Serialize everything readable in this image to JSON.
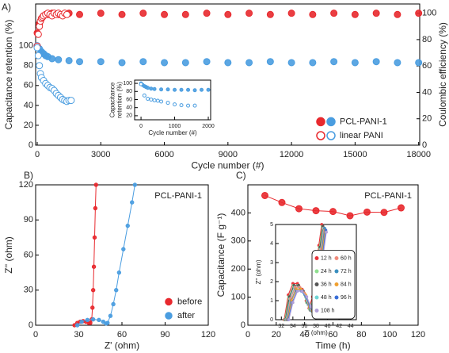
{
  "chart_data": [
    {
      "type": "scatter",
      "panel_label": "A)",
      "xlabel": "Cycle number (#)",
      "ylabel": "Capacitance retention (%)",
      "y2label": "Coulombic efficiency (%)",
      "ycolor": "#4a9de0",
      "y2color": "#e8292e",
      "xlim": [
        -75,
        18050
      ],
      "xticks": [
        0,
        3000,
        6000,
        9000,
        12000,
        15000,
        18000
      ],
      "ylim": [
        0,
        142
      ],
      "yticks": [
        0,
        20,
        40,
        60,
        80,
        100
      ],
      "y2lim": [
        0,
        107
      ],
      "y2ticks": [
        0,
        20,
        40,
        60,
        80,
        100
      ],
      "legend": "lower right",
      "series": [
        {
          "name": "PCL-PANI-1",
          "color": "#e8292e",
          "marker": "filled",
          "axis": "y2",
          "x": [
            0,
            100,
            200,
            300,
            400,
            500,
            700,
            1000,
            1500,
            2000,
            3000,
            4000,
            5000,
            6000,
            7000,
            8000,
            9000,
            10000,
            11000,
            12000,
            13000,
            14000,
            15000,
            16000,
            17000,
            18000
          ],
          "values": [
            85,
            92,
            96,
            98,
            99,
            99,
            100,
            99,
            100,
            99,
            100,
            99,
            100,
            99,
            99,
            100,
            99,
            100,
            99,
            100,
            99,
            100,
            99,
            100,
            99,
            100
          ]
        },
        {
          "name": "PCL-PANI-1",
          "color": "#4a9de0",
          "marker": "filled",
          "axis": "y",
          "x": [
            0,
            100,
            200,
            300,
            400,
            500,
            700,
            1000,
            1500,
            2000,
            3000,
            4000,
            5000,
            6000,
            7000,
            8000,
            9000,
            10000,
            11000,
            12000,
            13000,
            14000,
            15000,
            16000,
            17000,
            18000
          ],
          "values": [
            100,
            97,
            94,
            92,
            90,
            89,
            87,
            86,
            85,
            84,
            84,
            83,
            84,
            83,
            83,
            84,
            83,
            83,
            84,
            83,
            83,
            84,
            83,
            84,
            83,
            83
          ]
        },
        {
          "name": "linear PANI",
          "color": "#e8292e",
          "marker": "open",
          "axis": "y2",
          "x": [
            0,
            50,
            100,
            150,
            200,
            250,
            300,
            400,
            500,
            600,
            700,
            800,
            900,
            1000,
            1100,
            1200,
            1300,
            1400
          ],
          "values": [
            75,
            84,
            90,
            94,
            96,
            97,
            98,
            99,
            100,
            99,
            98,
            100,
            99,
            100,
            99,
            98,
            100,
            99
          ]
        },
        {
          "name": "linear PANI",
          "color": "#4a9de0",
          "marker": "open",
          "axis": "y",
          "x": [
            0,
            50,
            100,
            150,
            200,
            300,
            400,
            500,
            600,
            700,
            800,
            900,
            1000,
            1100,
            1200,
            1300,
            1400,
            1500,
            1600
          ],
          "values": [
            98,
            90,
            80,
            72,
            68,
            65,
            62,
            60,
            58,
            57,
            55,
            52,
            50,
            48,
            46,
            45,
            44,
            45,
            45
          ]
        }
      ]
    },
    {
      "type": "scatter",
      "xlabel": "Cycle number (#)",
      "ylabel": [
        "Capacitance",
        "retention (%)"
      ],
      "xlim": [
        -190,
        2070
      ],
      "xticks": [
        0,
        1000,
        2000
      ],
      "ylim": [
        10,
        108
      ],
      "yticks": [
        20,
        40,
        60,
        80,
        100
      ],
      "series": [
        {
          "color": "#4a9de0",
          "marker": "filled",
          "x": [
            0,
            50,
            100,
            150,
            200,
            300,
            400,
            600,
            800,
            1000,
            1200,
            1400,
            1600,
            1800,
            2000
          ],
          "values": [
            100,
            96,
            93,
            91,
            89,
            87,
            86,
            85,
            85,
            84,
            84,
            84,
            83,
            84,
            84
          ]
        },
        {
          "color": "#4a9de0",
          "marker": "open",
          "x": [
            0,
            100,
            200,
            300,
            400,
            500,
            600,
            800,
            1000,
            1200,
            1400,
            1600
          ],
          "values": [
            98,
            70,
            62,
            60,
            58,
            57,
            55,
            52,
            48,
            46,
            45,
            45
          ]
        }
      ]
    },
    {
      "type": "line",
      "panel_label": "B)",
      "annotation": "PCL-PANI-1",
      "xlabel": "Z' (ohm)",
      "ylabel": "Z'' (ohm)",
      "xlim": [
        0,
        120
      ],
      "xticks": [
        0,
        30,
        60,
        90,
        120
      ],
      "ylim": [
        0,
        120
      ],
      "yticks": [
        0,
        30,
        60,
        90,
        120
      ],
      "legend": "lower right",
      "series": [
        {
          "name": "before",
          "color": "#e8292e",
          "marker": "filled",
          "x": [
            27,
            29,
            31,
            33,
            35,
            37,
            38,
            39,
            39.5,
            40,
            40.5,
            41,
            41.5,
            42
          ],
          "values": [
            0,
            2,
            3,
            3.5,
            3,
            2,
            2,
            5,
            15,
            30,
            50,
            75,
            100,
            120
          ]
        },
        {
          "name": "after",
          "color": "#4a9de0",
          "marker": "filled",
          "x": [
            29,
            32,
            36,
            40,
            44,
            47,
            49,
            50,
            52,
            54,
            56,
            58,
            61,
            64,
            67,
            69
          ],
          "values": [
            0,
            3,
            4.5,
            5,
            4.5,
            3,
            1.5,
            2,
            8,
            18,
            30,
            45,
            65,
            85,
            105,
            120
          ]
        }
      ]
    },
    {
      "type": "line",
      "panel_label": "C)",
      "annotation": "PCL-PANI-1",
      "xlabel": "Time (h)",
      "ylabel": "Capacitance (F g⁻¹)",
      "xlim": [
        0,
        120
      ],
      "xticks": [
        0,
        20,
        40,
        60,
        80,
        100,
        120
      ],
      "ylim": [
        0,
        500
      ],
      "yticks": [
        0,
        100,
        200,
        300,
        400
      ],
      "series": [
        {
          "color": "#e8292e",
          "marker": "filled",
          "x": [
            12,
            24,
            36,
            48,
            60,
            72,
            84,
            96,
            108
          ],
          "values": [
            462,
            437,
            415,
            408,
            405,
            390,
            403,
            402,
            418
          ]
        }
      ]
    },
    {
      "type": "line",
      "xlabel": "Z' (ohm)",
      "ylabel": "Z'' (ohm)",
      "xlim": [
        31,
        45
      ],
      "xticks": [
        32,
        34,
        36,
        38,
        40,
        42,
        44
      ],
      "ylim": [
        0,
        5
      ],
      "yticks": [
        0,
        1,
        2,
        3,
        4,
        5
      ],
      "legend": "lower right",
      "series": [
        {
          "name": "12 h",
          "color": "#e8333a",
          "marker": "filled",
          "x": [
            32.5,
            33.2,
            34,
            34.8,
            35.6,
            36.3,
            36.8,
            37.4,
            38,
            38.5,
            39
          ],
          "values": [
            0,
            1.3,
            1.9,
            1.9,
            1.6,
            1.0,
            0.6,
            1.2,
            2.7,
            3.9,
            5
          ]
        },
        {
          "name": "24 h",
          "color": "#8fe08f",
          "marker": "filled",
          "x": [
            32.6,
            33.3,
            34.1,
            34.9,
            35.7,
            36.4,
            36.9,
            37.5,
            38.1,
            38.6,
            39.1
          ],
          "values": [
            0,
            1.2,
            1.8,
            1.8,
            1.5,
            0.9,
            0.55,
            1.1,
            2.6,
            3.8,
            4.9
          ]
        },
        {
          "name": "36 h",
          "color": "#555555",
          "marker": "filled",
          "x": [
            32.7,
            33.4,
            34.2,
            35,
            35.8,
            36.5,
            37,
            37.6,
            38.2,
            38.7,
            39.2
          ],
          "values": [
            0,
            1.2,
            1.8,
            1.8,
            1.5,
            0.9,
            0.5,
            1.1,
            2.6,
            3.8,
            4.9
          ]
        },
        {
          "name": "48 h",
          "color": "#6fd6d6",
          "marker": "filled",
          "x": [
            32.8,
            33.5,
            34.3,
            35.1,
            35.9,
            36.6,
            37.1,
            37.7,
            38.3,
            38.8,
            39.3
          ],
          "values": [
            0,
            1.1,
            1.7,
            1.7,
            1.4,
            0.8,
            0.5,
            1.0,
            2.5,
            3.7,
            4.8
          ]
        },
        {
          "name": "60 h",
          "color": "#f08c7c",
          "marker": "filled",
          "x": [
            32.9,
            33.6,
            34.4,
            35.2,
            36,
            36.7,
            37.2,
            37.8,
            38.4,
            38.9,
            39.4
          ],
          "values": [
            0,
            1.1,
            1.7,
            1.7,
            1.4,
            0.8,
            0.5,
            1.0,
            2.5,
            3.7,
            4.8
          ]
        },
        {
          "name": "72 h",
          "color": "#3a8fbf",
          "marker": "filled",
          "x": [
            33,
            33.7,
            34.5,
            35.3,
            36.1,
            36.8,
            37.3,
            37.9,
            38.5,
            39,
            39.5
          ],
          "values": [
            0,
            1.0,
            1.6,
            1.6,
            1.3,
            0.8,
            0.45,
            0.9,
            2.4,
            3.6,
            4.8
          ]
        },
        {
          "name": "84 h",
          "color": "#f0a030",
          "marker": "filled",
          "x": [
            33.1,
            33.8,
            34.6,
            35.4,
            36.2,
            36.9,
            37.4,
            38,
            38.6,
            39.1,
            39.6
          ],
          "values": [
            0,
            1.0,
            1.6,
            1.6,
            1.3,
            0.7,
            0.45,
            0.9,
            2.4,
            3.6,
            4.7
          ]
        },
        {
          "name": "96 h",
          "color": "#3a6fd8",
          "marker": "filled",
          "x": [
            33.2,
            33.9,
            34.7,
            35.5,
            36.3,
            37,
            37.5,
            38.1,
            38.7,
            39.2,
            39.7
          ],
          "values": [
            0,
            0.9,
            1.5,
            1.5,
            1.2,
            0.7,
            0.4,
            0.8,
            2.3,
            3.5,
            4.7
          ]
        },
        {
          "name": "108 h",
          "color": "#b09fd8",
          "marker": "filled",
          "x": [
            33.3,
            34,
            34.8,
            35.6,
            36.4,
            37.1,
            37.6,
            38.2,
            38.8,
            39.3,
            39.8
          ],
          "values": [
            0,
            0.9,
            1.5,
            1.5,
            1.2,
            0.7,
            0.4,
            0.8,
            2.3,
            3.5,
            4.6
          ]
        }
      ]
    }
  ]
}
